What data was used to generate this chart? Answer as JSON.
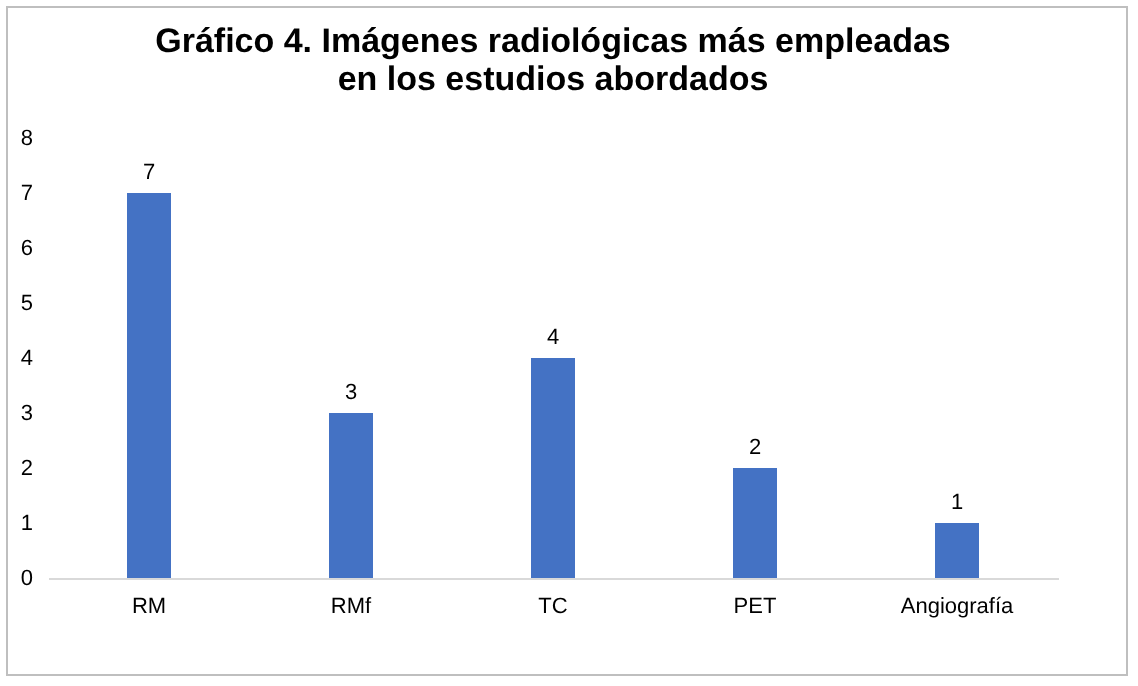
{
  "chart_data": {
    "type": "bar",
    "title": "Gráfico 4. Imágenes radiológicas más empleadas\nen los estudios abordados",
    "categories": [
      "RM",
      "RMf",
      "TC",
      "PET",
      "Angiografía"
    ],
    "values": [
      7,
      3,
      4,
      2,
      1
    ],
    "color": "#4472c4",
    "data_labels": true,
    "ylim": [
      0,
      8
    ],
    "yticks": [
      0,
      1,
      2,
      3,
      4,
      5,
      6,
      7,
      8
    ],
    "grid": false
  }
}
